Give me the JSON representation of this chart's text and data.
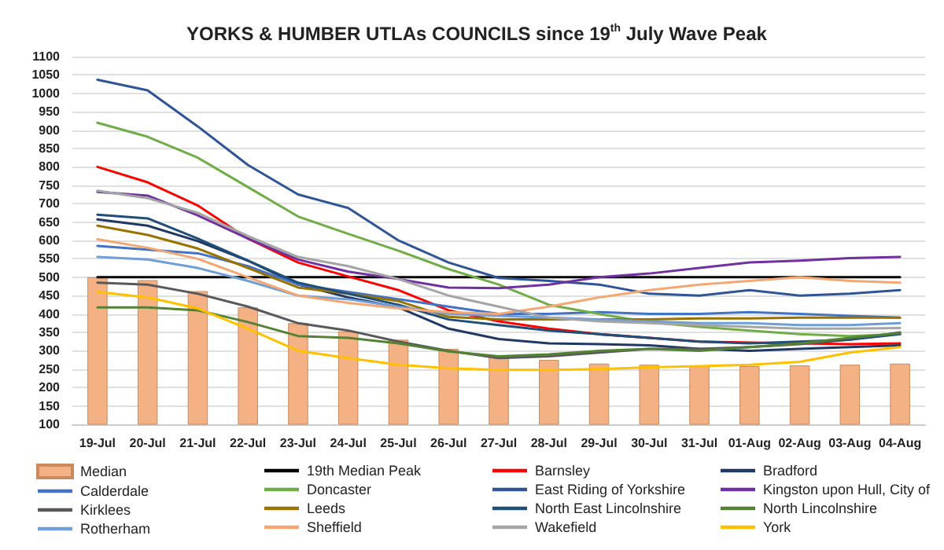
{
  "chart_data": {
    "type": "line",
    "title": "YORKS & HUMBER UTLAs COUNCILS since 19$^{th}$ July Wave Peak",
    "categories": [
      "19-Jul",
      "20-Jul",
      "21-Jul",
      "22-Jul",
      "23-Jul",
      "24-Jul",
      "25-Jul",
      "26-Jul",
      "27-Jul",
      "28-Jul",
      "29-Jul",
      "30-Jul",
      "31-Jul",
      "01-Aug",
      "02-Aug",
      "03-Aug",
      "04-Aug"
    ],
    "ylim": [
      100,
      1100
    ],
    "yticks": [
      100,
      150,
      200,
      250,
      300,
      350,
      400,
      450,
      500,
      550,
      600,
      650,
      700,
      750,
      800,
      850,
      900,
      950,
      1000,
      1050,
      1100
    ],
    "grid": "y",
    "legend": "bottom",
    "marker": "none",
    "line_style": "solid",
    "series": [
      {
        "name": "Median",
        "type": "bar",
        "color": "#f4b183",
        "values": [
          500,
          492,
          462,
          418,
          375,
          352,
          330,
          305,
          285,
          275,
          265,
          262,
          260,
          258,
          260,
          262,
          265
        ]
      },
      {
        "name": "19th Median Peak",
        "color": "#000000",
        "values": [
          500,
          500,
          500,
          500,
          500,
          500,
          500,
          500,
          500,
          500,
          500,
          500,
          500,
          500,
          500,
          500,
          500
        ]
      },
      {
        "name": "Barnsley",
        "color": "#ff0000",
        "values": [
          800,
          758,
          695,
          605,
          540,
          502,
          465,
          410,
          380,
          360,
          345,
          335,
          325,
          322,
          320,
          318,
          320
        ]
      },
      {
        "name": "Bradford",
        "color": "#1f3864",
        "values": [
          657,
          640,
          598,
          545,
          480,
          445,
          418,
          360,
          332,
          320,
          318,
          315,
          305,
          300,
          305,
          310,
          315
        ]
      },
      {
        "name": "Calderdale",
        "color": "#4472c4",
        "values": [
          585,
          575,
          565,
          530,
          480,
          460,
          440,
          420,
          400,
          400,
          405,
          400,
          400,
          405,
          400,
          395,
          390
        ]
      },
      {
        "name": "Doncaster",
        "color": "#70ad47",
        "values": [
          920,
          882,
          825,
          745,
          665,
          618,
          572,
          522,
          480,
          425,
          400,
          378,
          365,
          355,
          345,
          340,
          345
        ]
      },
      {
        "name": "East Riding of Yorkshire",
        "color": "#2f5597",
        "values": [
          1037,
          1008,
          910,
          805,
          725,
          688,
          600,
          540,
          498,
          490,
          480,
          455,
          450,
          465,
          450,
          455,
          465
        ]
      },
      {
        "name": "Kingston upon Hull, City of",
        "color": "#7030a0",
        "values": [
          732,
          722,
          668,
          605,
          548,
          515,
          495,
          472,
          470,
          480,
          500,
          510,
          525,
          540,
          545,
          552,
          555
        ]
      },
      {
        "name": "Kirklees",
        "color": "#595959",
        "values": [
          485,
          480,
          455,
          420,
          375,
          355,
          325,
          300,
          280,
          285,
          295,
          305,
          305,
          310,
          318,
          330,
          350
        ]
      },
      {
        "name": "Leeds",
        "color": "#997300",
        "values": [
          640,
          615,
          578,
          525,
          472,
          455,
          435,
          392,
          385,
          385,
          385,
          385,
          388,
          388,
          390,
          390,
          390
        ]
      },
      {
        "name": "North East Lincolnshire",
        "color": "#1f4e79",
        "values": [
          670,
          660,
          605,
          545,
          485,
          455,
          425,
          385,
          370,
          355,
          345,
          335,
          325,
          320,
          325,
          330,
          345
        ]
      },
      {
        "name": "North Lincolnshire",
        "color": "#548235",
        "values": [
          418,
          418,
          410,
          378,
          340,
          335,
          320,
          298,
          285,
          290,
          300,
          305,
          300,
          310,
          320,
          335,
          348
        ]
      },
      {
        "name": "Rotherham",
        "color": "#6f9fd8",
        "values": [
          555,
          548,
          525,
          490,
          450,
          440,
          420,
          400,
          395,
          390,
          385,
          380,
          375,
          375,
          370,
          370,
          375
        ]
      },
      {
        "name": "Sheffield",
        "color": "#f4a772",
        "values": [
          603,
          580,
          550,
          500,
          450,
          430,
          415,
          405,
          400,
          420,
          445,
          465,
          480,
          490,
          500,
          490,
          485
        ]
      },
      {
        "name": "Wakefield",
        "color": "#a5a5a5",
        "values": [
          735,
          715,
          675,
          612,
          555,
          530,
          495,
          450,
          420,
          390,
          380,
          375,
          370,
          365,
          360,
          360,
          362
        ]
      },
      {
        "name": "York",
        "color": "#ffc000",
        "values": [
          460,
          445,
          415,
          360,
          300,
          280,
          262,
          252,
          248,
          248,
          250,
          255,
          258,
          262,
          270,
          295,
          310
        ]
      }
    ]
  }
}
